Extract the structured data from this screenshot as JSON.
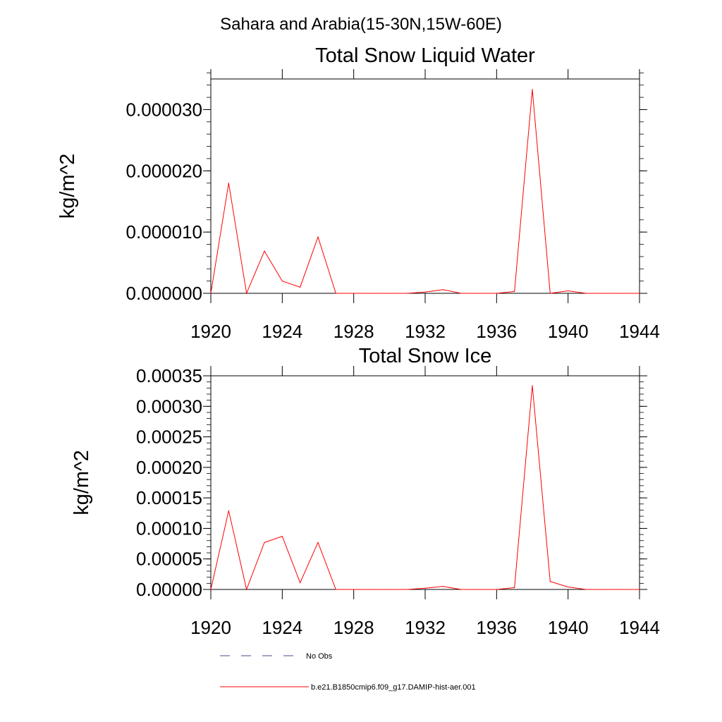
{
  "figure_title": "Sahara and Arabia(15-30N,15W-60E)",
  "chart_data": [
    {
      "type": "line",
      "title": "Total Snow Liquid Water",
      "xlabel": "",
      "ylabel": "kg/m^2",
      "xlim": [
        1920,
        1944
      ],
      "ylim": [
        0,
        3.5e-05
      ],
      "x_ticks": [
        1920,
        1924,
        1928,
        1932,
        1936,
        1940,
        1944
      ],
      "x_tick_labels": [
        "1920",
        "1924",
        "1928",
        "1932",
        "1936",
        "1940",
        "1944"
      ],
      "y_ticks": [
        0,
        1e-05,
        2e-05,
        3e-05
      ],
      "y_tick_labels": [
        "0.000000",
        "0.000010",
        "0.000020",
        "0.000030"
      ],
      "x": [
        1920,
        1921,
        1922,
        1923,
        1924,
        1925,
        1926,
        1927,
        1928,
        1929,
        1930,
        1931,
        1932,
        1933,
        1934,
        1935,
        1936,
        1937,
        1938,
        1939,
        1940,
        1941,
        1942,
        1943,
        1944
      ],
      "series": [
        {
          "name": "b.e21.B1850cmip6.f09_g17.DAMIP-hist-aer.001",
          "color": "#ff0000",
          "values": [
            0.0,
            1.8e-05,
            0.0,
            6.9e-06,
            2e-06,
            1e-06,
            9.2e-06,
            0.0,
            0.0,
            0.0,
            0.0,
            0.0,
            2e-07,
            6e-07,
            0.0,
            0.0,
            0.0,
            3e-07,
            3.33e-05,
            0.0,
            4e-07,
            0.0,
            0.0,
            0.0,
            0.0
          ]
        }
      ]
    },
    {
      "type": "line",
      "title": "Total Snow Ice",
      "xlabel": "",
      "ylabel": "kg/m^2",
      "xlim": [
        1920,
        1944
      ],
      "ylim": [
        0,
        0.00035
      ],
      "x_ticks": [
        1920,
        1924,
        1928,
        1932,
        1936,
        1940,
        1944
      ],
      "x_tick_labels": [
        "1920",
        "1924",
        "1928",
        "1932",
        "1936",
        "1940",
        "1944"
      ],
      "y_ticks": [
        0,
        5e-05,
        0.0001,
        0.00015,
        0.0002,
        0.00025,
        0.0003,
        0.00035
      ],
      "y_tick_labels": [
        "0.00000",
        "0.00005",
        "0.00010",
        "0.00015",
        "0.00020",
        "0.00025",
        "0.00030",
        "0.00035"
      ],
      "x": [
        1920,
        1921,
        1922,
        1923,
        1924,
        1925,
        1926,
        1927,
        1928,
        1929,
        1930,
        1931,
        1932,
        1933,
        1934,
        1935,
        1936,
        1937,
        1938,
        1939,
        1940,
        1941,
        1942,
        1943,
        1944
      ],
      "series": [
        {
          "name": "b.e21.B1850cmip6.f09_g17.DAMIP-hist-aer.001",
          "color": "#ff0000",
          "values": [
            0.0,
            0.000129,
            0.0,
            7.7e-05,
            8.7e-05,
            1.1e-05,
            7.7e-05,
            0.0,
            0.0,
            0.0,
            0.0,
            0.0,
            2e-06,
            5e-06,
            0.0,
            0.0,
            0.0,
            3e-06,
            0.000334,
            1.3e-05,
            4e-06,
            0.0,
            0.0,
            0.0,
            0.0
          ]
        }
      ]
    }
  ],
  "legend": [
    {
      "label": "No Obs",
      "style": "dashed",
      "color": "#4a4a8a"
    },
    {
      "label": "b.e21.B1850cmip6.f09_g17.DAMIP-hist-aer.001",
      "style": "solid",
      "color": "#ff0000"
    }
  ]
}
